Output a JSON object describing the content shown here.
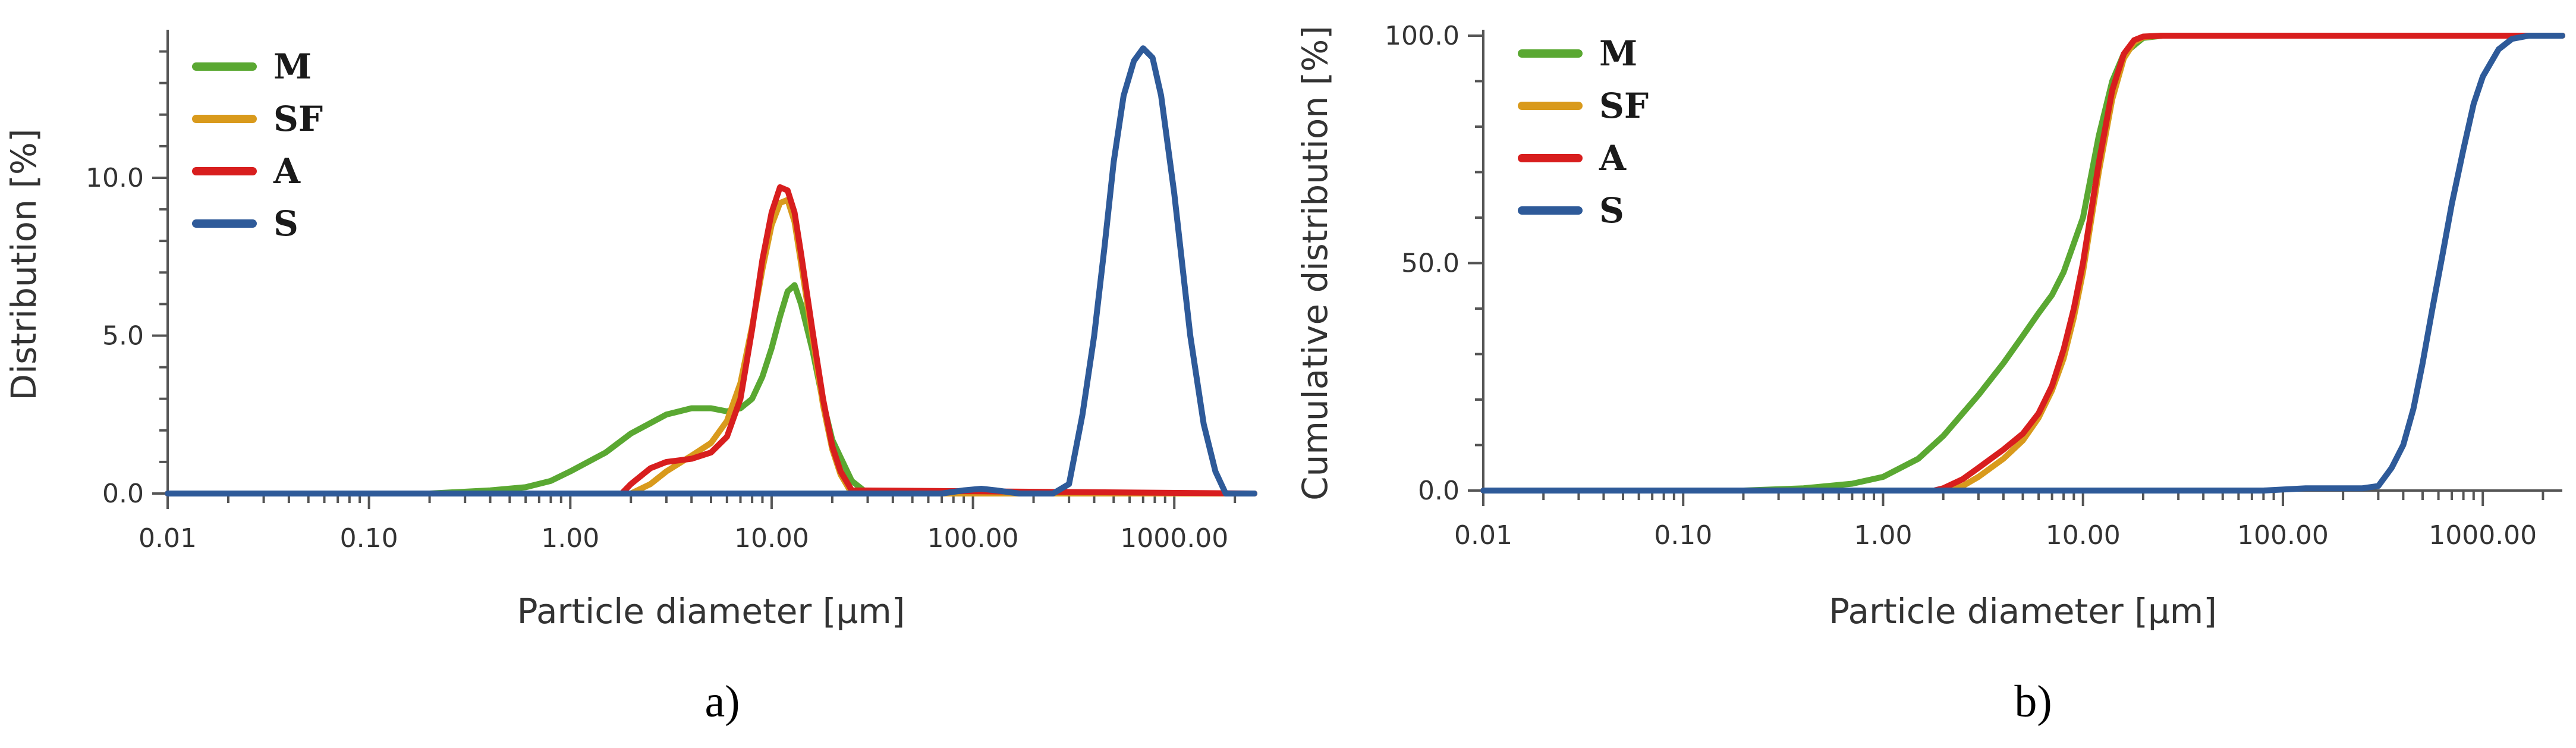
{
  "chart_data": [
    {
      "type": "line",
      "caption": "a)",
      "xlabel": "Particle diameter [µm]",
      "ylabel": "Distribution [%]",
      "x_scale": "log",
      "xlim": [
        0.01,
        2500
      ],
      "ylim": [
        0,
        14.5
      ],
      "x_ticks": [
        0.01,
        0.1,
        1,
        10,
        100,
        1000
      ],
      "x_tick_labels": [
        "0.01",
        "0.10",
        "1.00",
        "10.00",
        "100.00",
        "1000.00"
      ],
      "y_ticks": [
        0,
        5,
        10
      ],
      "y_tick_labels": [
        "0.0",
        "5.0",
        "10.0"
      ],
      "legend_position": "top-left",
      "series": [
        {
          "name": "M",
          "color": "#5aa832",
          "x": [
            0.01,
            0.2,
            0.4,
            0.6,
            0.8,
            1.0,
            1.5,
            2.0,
            3.0,
            4.0,
            5.0,
            6.0,
            7.0,
            8.0,
            9.0,
            10.0,
            11.0,
            12.0,
            13.0,
            14.0,
            16.0,
            18.0,
            20.0,
            25.0,
            30.0,
            2500
          ],
          "y": [
            0,
            0,
            0.1,
            0.2,
            0.4,
            0.7,
            1.3,
            1.9,
            2.5,
            2.7,
            2.7,
            2.6,
            2.7,
            3.0,
            3.7,
            4.6,
            5.6,
            6.4,
            6.6,
            6.0,
            4.5,
            2.9,
            1.7,
            0.4,
            0,
            0
          ]
        },
        {
          "name": "SF",
          "color": "#d99a1c",
          "x": [
            0.01,
            2.0,
            2.5,
            3.0,
            4.0,
            5.0,
            6.0,
            7.0,
            8.0,
            9.0,
            10.0,
            11.0,
            12.0,
            13.0,
            14.0,
            16.0,
            18.0,
            20.0,
            22.0,
            25.0,
            2500
          ],
          "y": [
            0,
            0,
            0.3,
            0.7,
            1.2,
            1.6,
            2.3,
            3.5,
            5.3,
            7.1,
            8.5,
            9.2,
            9.3,
            8.6,
            7.3,
            4.9,
            2.8,
            1.4,
            0.6,
            0,
            0
          ]
        },
        {
          "name": "A",
          "color": "#d81e1e",
          "x": [
            0.01,
            1.8,
            2.0,
            2.5,
            3.0,
            4.0,
            5.0,
            6.0,
            7.0,
            8.0,
            9.0,
            10.0,
            11.0,
            12.0,
            13.0,
            14.0,
            16.0,
            18.0,
            20.0,
            22.0,
            25.0,
            2500
          ],
          "y": [
            0,
            0,
            0.3,
            0.8,
            1.0,
            1.1,
            1.3,
            1.8,
            3.0,
            5.2,
            7.4,
            8.9,
            9.7,
            9.6,
            8.9,
            7.6,
            5.1,
            3.0,
            1.5,
            0.7,
            0.1,
            0
          ]
        },
        {
          "name": "S",
          "color": "#2e5a99",
          "x": [
            0.01,
            70,
            90,
            110,
            130,
            170,
            250,
            300,
            350,
            400,
            450,
            500,
            560,
            630,
            700,
            780,
            860,
            1000,
            1200,
            1400,
            1600,
            1800,
            2500
          ],
          "y": [
            0,
            0,
            0.1,
            0.15,
            0.1,
            0,
            0,
            0.3,
            2.5,
            5.0,
            7.8,
            10.5,
            12.6,
            13.7,
            14.1,
            13.8,
            12.6,
            9.5,
            5.0,
            2.2,
            0.7,
            0,
            0
          ]
        }
      ]
    },
    {
      "type": "line",
      "caption": "b)",
      "xlabel": "Particle diameter [µm]",
      "ylabel": "Cumulative distribution [%]",
      "x_scale": "log",
      "xlim": [
        0.01,
        2500
      ],
      "ylim": [
        0,
        100
      ],
      "x_ticks": [
        0.01,
        0.1,
        1,
        10,
        100,
        1000
      ],
      "x_tick_labels": [
        "0.01",
        "0.10",
        "1.00",
        "10.00",
        "100.00",
        "1000.00"
      ],
      "y_ticks": [
        0,
        50,
        100
      ],
      "y_tick_labels": [
        "0.0",
        "50.0",
        "100.0"
      ],
      "legend_position": "top-left",
      "series": [
        {
          "name": "M",
          "color": "#5aa832",
          "x": [
            0.01,
            0.2,
            0.4,
            0.7,
            1.0,
            1.5,
            2.0,
            3.0,
            4.0,
            5.0,
            6.0,
            7.0,
            8.0,
            10.0,
            12.0,
            14.0,
            16.0,
            20.0,
            25.0,
            2500
          ],
          "y": [
            0,
            0,
            0.5,
            1.5,
            3.0,
            7.0,
            12.0,
            21.0,
            28.0,
            34.0,
            39.0,
            43.0,
            48.0,
            60.0,
            78.0,
            90.0,
            96.0,
            99.5,
            100,
            100
          ]
        },
        {
          "name": "SF",
          "color": "#d99a1c",
          "x": [
            0.01,
            2.0,
            2.5,
            3.0,
            4.0,
            5.0,
            6.0,
            7.0,
            8.0,
            9.0,
            10.0,
            12.0,
            14.0,
            16.0,
            18.0,
            20.0,
            25.0,
            2500
          ],
          "y": [
            0,
            0,
            1.0,
            3.0,
            7.0,
            11.0,
            16.0,
            22.0,
            29.0,
            38.0,
            48.0,
            70.0,
            86.0,
            95.0,
            98.5,
            99.7,
            100,
            100
          ]
        },
        {
          "name": "A",
          "color": "#d81e1e",
          "x": [
            0.01,
            1.8,
            2.0,
            2.5,
            3.0,
            4.0,
            5.0,
            6.0,
            7.0,
            8.0,
            9.0,
            10.0,
            12.0,
            14.0,
            16.0,
            18.0,
            20.0,
            25.0,
            2500
          ],
          "y": [
            0,
            0,
            0.5,
            2.5,
            5.0,
            9.0,
            12.5,
            17.0,
            23.0,
            31.0,
            40.0,
            50.0,
            72.0,
            88.0,
            96.0,
            99.0,
            99.8,
            100,
            100
          ]
        },
        {
          "name": "S",
          "color": "#2e5a99",
          "x": [
            0.01,
            80,
            130,
            250,
            300,
            350,
            400,
            450,
            500,
            560,
            630,
            700,
            800,
            900,
            1000,
            1200,
            1400,
            1700,
            2500
          ],
          "y": [
            0,
            0,
            0.5,
            0.5,
            1.0,
            5.0,
            10.0,
            18.0,
            28.0,
            40.0,
            52.0,
            63.0,
            75.0,
            85.0,
            91.0,
            97.0,
            99.3,
            100,
            100
          ]
        }
      ]
    }
  ]
}
